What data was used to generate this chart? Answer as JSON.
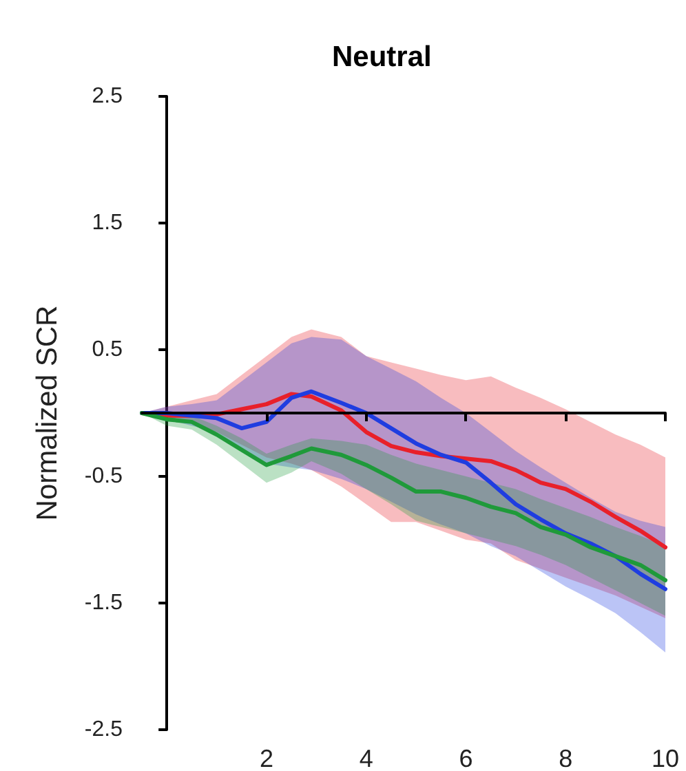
{
  "chart_data": {
    "type": "line",
    "title": "Neutral",
    "ylabel": "Normalized SCR",
    "x": [
      -0.5,
      0,
      0.5,
      1,
      1.5,
      2,
      2.5,
      2.9,
      3.5,
      4,
      4.5,
      5,
      5.5,
      6,
      6.5,
      7,
      7.5,
      8,
      8.5,
      9,
      9.5,
      10
    ],
    "series": [
      {
        "color": "#e8202a",
        "values": [
          0,
          -0.02,
          -0.02,
          -0.01,
          0.03,
          0.07,
          0.15,
          0.13,
          0.02,
          -0.15,
          -0.26,
          -0.31,
          -0.34,
          -0.36,
          -0.38,
          -0.45,
          -0.55,
          -0.6,
          -0.7,
          -0.82,
          -0.93,
          -1.06
        ],
        "upper": [
          0,
          0.05,
          0.1,
          0.15,
          0.3,
          0.45,
          0.6,
          0.66,
          0.6,
          0.45,
          0.4,
          0.35,
          0.3,
          0.26,
          0.29,
          0.2,
          0.12,
          0.03,
          -0.07,
          -0.17,
          -0.25,
          -0.35
        ],
        "lower": [
          0,
          -0.03,
          -0.08,
          -0.15,
          -0.25,
          -0.35,
          -0.4,
          -0.45,
          -0.58,
          -0.72,
          -0.86,
          -0.86,
          -0.93,
          -1.0,
          -1.03,
          -1.16,
          -1.23,
          -1.3,
          -1.37,
          -1.44,
          -1.53,
          -1.62
        ]
      },
      {
        "color": "#1f3de0",
        "values": [
          0,
          0,
          -0.02,
          -0.04,
          -0.12,
          -0.07,
          0.12,
          0.17,
          0.08,
          0,
          -0.12,
          -0.24,
          -0.33,
          -0.39,
          -0.55,
          -0.72,
          -0.84,
          -0.95,
          -1.03,
          -1.13,
          -1.27,
          -1.39
        ],
        "upper": [
          0,
          0.05,
          0.07,
          0.1,
          0.25,
          0.4,
          0.55,
          0.6,
          0.58,
          0.45,
          0.35,
          0.25,
          0.12,
          0,
          -0.15,
          -0.3,
          -0.43,
          -0.55,
          -0.67,
          -0.78,
          -0.85,
          -0.9
        ],
        "lower": [
          0,
          -0.05,
          -0.1,
          -0.15,
          -0.28,
          -0.4,
          -0.43,
          -0.45,
          -0.52,
          -0.6,
          -0.7,
          -0.8,
          -0.88,
          -0.95,
          -1.05,
          -1.13,
          -1.25,
          -1.37,
          -1.47,
          -1.58,
          -1.73,
          -1.89
        ]
      },
      {
        "color": "#1f9a3a",
        "values": [
          0,
          -0.05,
          -0.07,
          -0.17,
          -0.29,
          -0.41,
          -0.34,
          -0.28,
          -0.33,
          -0.41,
          -0.51,
          -0.62,
          -0.62,
          -0.67,
          -0.74,
          -0.79,
          -0.9,
          -0.96,
          -1.06,
          -1.13,
          -1.2,
          -1.32
        ],
        "upper": [
          0,
          0,
          -0.02,
          -0.1,
          -0.2,
          -0.32,
          -0.25,
          -0.2,
          -0.22,
          -0.25,
          -0.33,
          -0.4,
          -0.45,
          -0.5,
          -0.55,
          -0.6,
          -0.68,
          -0.75,
          -0.82,
          -0.9,
          -0.97,
          -1.05
        ],
        "lower": [
          0,
          -0.1,
          -0.13,
          -0.25,
          -0.4,
          -0.55,
          -0.47,
          -0.38,
          -0.48,
          -0.6,
          -0.72,
          -0.85,
          -0.9,
          -0.95,
          -1.0,
          -1.05,
          -1.12,
          -1.2,
          -1.3,
          -1.4,
          -1.5,
          -1.6
        ]
      }
    ],
    "xlim": [
      -0.5,
      10
    ],
    "xticks": [
      2,
      4,
      6,
      8,
      10
    ],
    "ylim": [
      -2.5,
      2.5
    ],
    "yticks": [
      -2.5,
      -1.5,
      -0.5,
      0.5,
      1.5,
      2.5
    ],
    "grid": false,
    "marker": "none",
    "line_style": "solid"
  }
}
